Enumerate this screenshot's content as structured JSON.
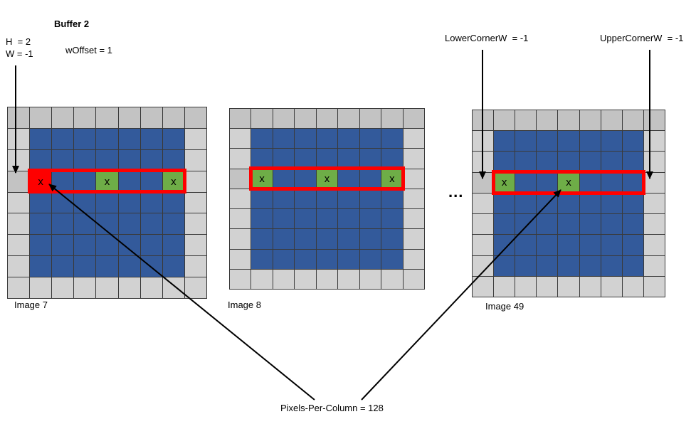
{
  "title": "Buffer 2",
  "labels": {
    "h": "H  = 2",
    "w": "W = -1",
    "woffset": "wOffset = 1",
    "lower_corner": "LowerCornerW  = -1",
    "upper_corner": "UpperCornerW  = -1",
    "ellipsis": "...",
    "pixels_per_column": "Pixels-Per-Column = 128"
  },
  "marks": {
    "x": "x"
  },
  "colors": {
    "blue": "#335a9b",
    "green": "#6ead47",
    "red": "#fe0000",
    "gray": "#d2d2d2",
    "gray_dark": "#c3c3c3",
    "grid_line": "#3a3a3a",
    "highlight_outline": "#fe0000",
    "arrow": "#000000"
  },
  "grids": [
    {
      "label": "Image 7",
      "cells": [
        "ddddddddd",
        "gbbbbbbbg",
        "gbbbbbbbg",
        "drbbxbbxg",
        "gbbbbbbbg",
        "gbbbbbbbg",
        "gbbbbbbbg",
        "gbbbbbbbg",
        "ggggggggg"
      ]
    },
    {
      "label": "Image 8",
      "cells": [
        "ddddddddd",
        "gbbbbbbbg",
        "gbbbbbbbg",
        "dxbbxbbxg",
        "gbbbbbbbg",
        "gbbbbbbbg",
        "gbbbbbbbg",
        "gbbbbbbbg",
        "ggggggggg"
      ]
    },
    {
      "label": "Image 49",
      "cells": [
        "ddddddddd",
        "gbbbbbbbg",
        "gbbbbbbbg",
        "dxbbxbbbg",
        "gbbbbbbbg",
        "gbbbbbbbg",
        "gbbbbbbbg",
        "gbbbbbbbg",
        "ggggggggg"
      ]
    }
  ]
}
